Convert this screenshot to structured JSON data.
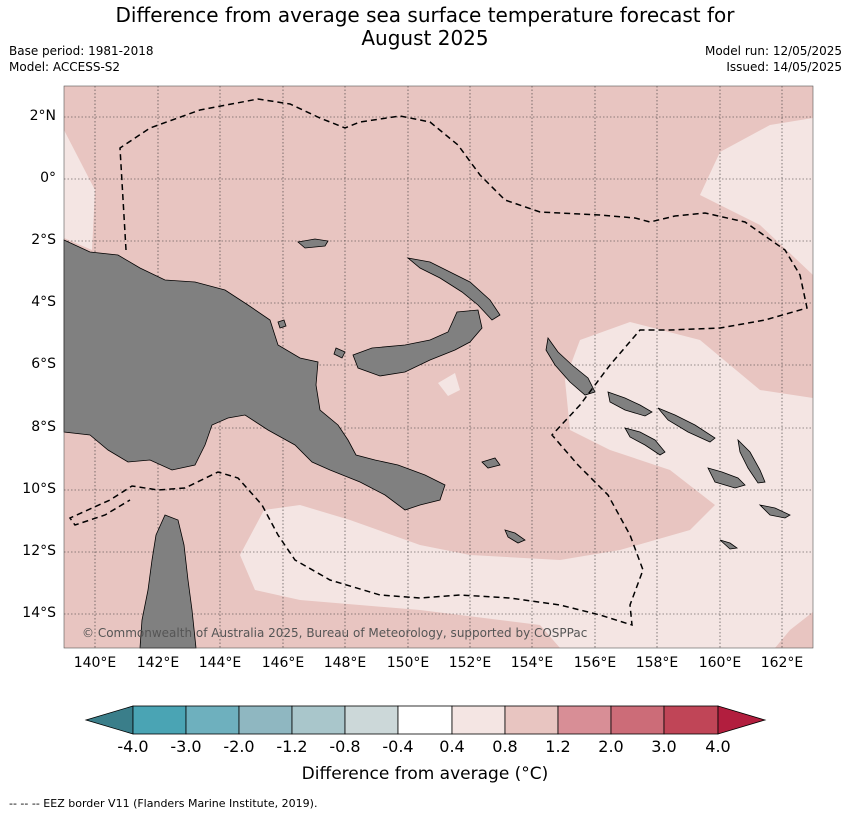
{
  "title": "Difference from average sea surface temperature forecast for August 2025",
  "title_line1": "Difference from average sea surface temperature forecast for",
  "title_line2": "August 2025",
  "base_period": "Base period: 1981-2018",
  "model": "Model: ACCESS-S2",
  "model_run": "Model run: 12/05/2025",
  "issued": "Issued: 14/05/2025",
  "copyright": "© Commonwealth of Australia 2025, Bureau of Meteorology, supported by COSPPac",
  "lat_labels": [
    "2°N",
    "0°",
    "2°S",
    "4°S",
    "6°S",
    "8°S",
    "10°S",
    "12°S",
    "14°S"
  ],
  "lon_labels": [
    "140°E",
    "142°E",
    "144°E",
    "146°E",
    "148°E",
    "150°E",
    "152°E",
    "154°E",
    "156°E",
    "158°E",
    "160°E",
    "162°E"
  ],
  "colorbar": {
    "title": "Difference from average (°C)",
    "ticks": [
      "-4.0",
      "-3.0",
      "-2.0",
      "-1.2",
      "-0.8",
      "-0.4",
      "0.4",
      "0.8",
      "1.2",
      "2.0",
      "3.0",
      "4.0"
    ],
    "colors": [
      "#3a7e8a",
      "#4aa4b4",
      "#6eb0be",
      "#8fb7c1",
      "#a9c6cb",
      "#ccd8d9",
      "#ffffff",
      "#f4e5e3",
      "#e8c5c1",
      "#d88e96",
      "#cc6c78",
      "#c04557",
      "#b21e3e"
    ]
  },
  "land_color": "#808080",
  "eez_note": "--  --  -- EEZ border V11 (Flanders Marine Institute, 2019)."
}
